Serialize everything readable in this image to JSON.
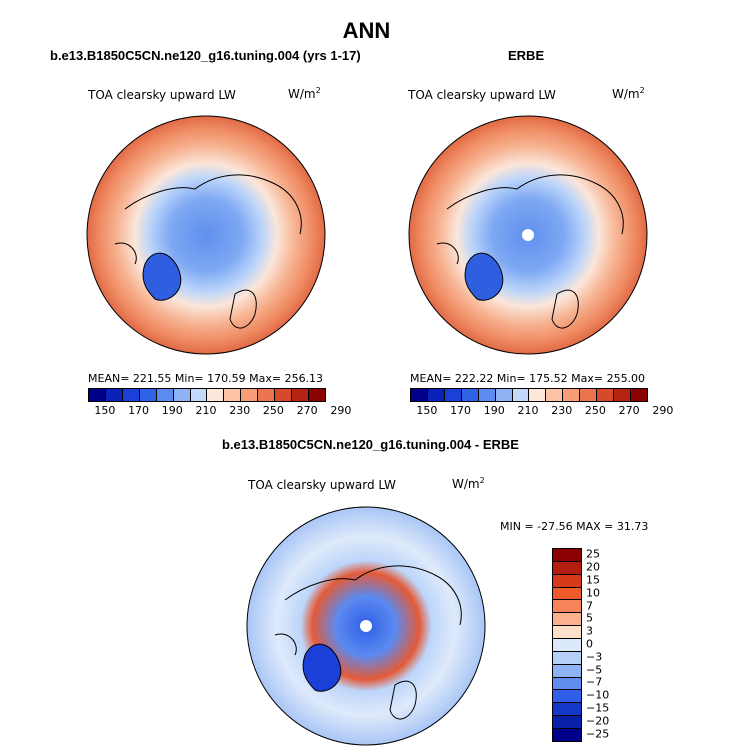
{
  "title": "ANN",
  "panels": [
    {
      "title": "b.e13.B1850C5CN.ne120_g16.tuning.004 (yrs 1-17)",
      "variable": "TOA clearsky upward LW",
      "units": "W/m",
      "units_exp": "2",
      "stats": "MEAN= 221.55   Min= 170.59   Max= 256.13"
    },
    {
      "title": "ERBE",
      "variable": "TOA clearsky upward LW",
      "units": "W/m",
      "units_exp": "2",
      "stats": "MEAN= 222.22   Min= 175.52   Max= 255.00"
    },
    {
      "title": "b.e13.B1850C5CN.ne120_g16.tuning.004 - ERBE",
      "variable": "TOA clearsky upward LW",
      "units": "W/m",
      "units_exp": "2",
      "stats": "MIN = -27.56  MAX =  31.73"
    }
  ],
  "colorbar_abs": {
    "colors": [
      "#00008b",
      "#0a22b8",
      "#1a40d8",
      "#2f63e6",
      "#5b8af0",
      "#8fb2f5",
      "#c3d8fb",
      "#fde8dc",
      "#fcc3a6",
      "#f79d78",
      "#ec7550",
      "#d64a2b",
      "#b52312",
      "#8b0000"
    ],
    "labels": [
      "150",
      "170",
      "190",
      "210",
      "230",
      "250",
      "270",
      "290"
    ]
  },
  "colorbar_diff": {
    "colors": [
      "#8b0000",
      "#b41e0e",
      "#d63a1a",
      "#ef5a2c",
      "#f7845a",
      "#fbb18e",
      "#fde0cc",
      "#dce9fb",
      "#b7cff7",
      "#8fb2f3",
      "#5f8df0",
      "#2f5fe6",
      "#1538c8",
      "#0a1fa8",
      "#00008b"
    ],
    "labels": [
      "25",
      "20",
      "15",
      "10",
      "7",
      "5",
      "3",
      "0",
      "−3",
      "−5",
      "−7",
      "−10",
      "−15",
      "−20",
      "−25"
    ]
  }
}
